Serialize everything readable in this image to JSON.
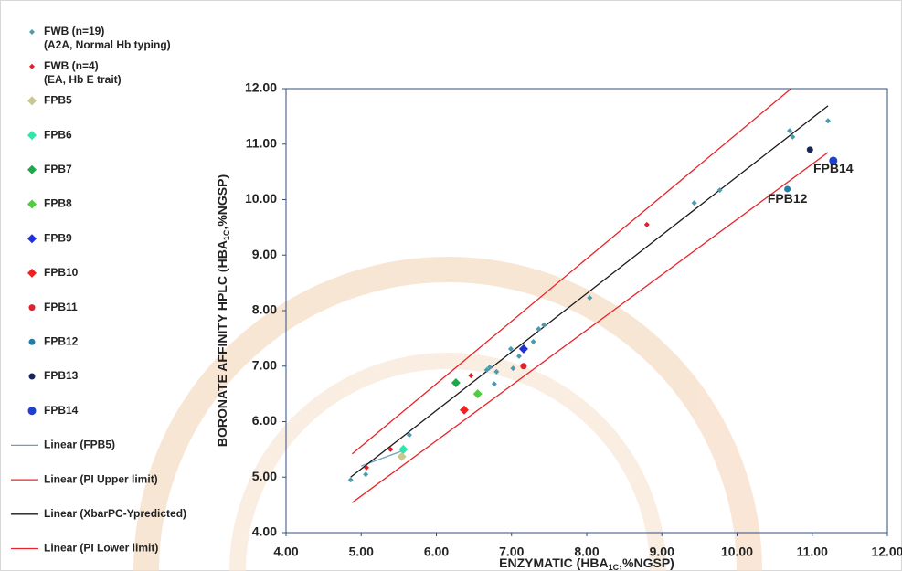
{
  "chart_data": {
    "type": "scatter",
    "x_label": {
      "pre": "ENZYMATIC (HBA",
      "sub": "1C",
      "post": ",%NGSP)"
    },
    "y_label": {
      "pre": "BORONATE AFFINITY HPLC (HBA",
      "sub": "1C",
      "post": ",%NGSP)"
    },
    "xlim": [
      4,
      12
    ],
    "ylim": [
      4,
      12
    ],
    "xticks": [
      {
        "value": 4,
        "label": "4.00"
      },
      {
        "value": 5,
        "label": "5.00"
      },
      {
        "value": 6,
        "label": "6.00"
      },
      {
        "value": 7,
        "label": "7.00"
      },
      {
        "value": 8,
        "label": "8.00"
      },
      {
        "value": 9,
        "label": "9.00"
      },
      {
        "value": 10,
        "label": "10.00"
      },
      {
        "value": 11,
        "label": "11.00"
      },
      {
        "value": 12,
        "label": "12.00"
      }
    ],
    "yticks": [
      {
        "value": 4,
        "label": "4.00"
      },
      {
        "value": 5,
        "label": "5.00"
      },
      {
        "value": 6,
        "label": "6.00"
      },
      {
        "value": 7,
        "label": "7.00"
      },
      {
        "value": 8,
        "label": "8.00"
      },
      {
        "value": 9,
        "label": "9.00"
      },
      {
        "value": 10,
        "label": "10.00"
      },
      {
        "value": 11,
        "label": "11.00"
      },
      {
        "value": 12,
        "label": "12.00"
      }
    ],
    "series": [
      {
        "name": "FWB (n=19)",
        "note": "(A2A, Normal Hb typing)",
        "color": "#4a9bb0",
        "marker": "diamond",
        "size": 3,
        "x": [
          4.86,
          5.06,
          5.64,
          6.77,
          6.99,
          7.02,
          7.1,
          7.29,
          7.36,
          7.43,
          8.04,
          9.43,
          9.77,
          10.7,
          10.74,
          11.21,
          6.67,
          6.71,
          6.8
        ],
        "values": [
          4.95,
          5.05,
          5.76,
          6.68,
          7.31,
          6.96,
          7.18,
          7.44,
          7.67,
          7.74,
          8.23,
          9.94,
          10.17,
          11.24,
          11.13,
          11.42,
          6.93,
          6.98,
          6.9
        ]
      },
      {
        "name": "FWB (n=4)",
        "note": "(EA, Hb E trait)",
        "color": "#e0202a",
        "marker": "diamond",
        "size": 3,
        "x": [
          5.07,
          5.39,
          6.46,
          8.8
        ],
        "values": [
          5.17,
          5.5,
          6.83,
          9.55
        ]
      },
      {
        "name": "FPB5",
        "color": "#c8c890",
        "marker": "diamond",
        "size": 5,
        "x": [
          5.54
        ],
        "values": [
          5.37
        ]
      },
      {
        "name": "FPB6",
        "color": "#2ee6a8",
        "marker": "diamond",
        "size": 5,
        "x": [
          5.56
        ],
        "values": [
          5.5
        ]
      },
      {
        "name": "FPB7",
        "color": "#1fa84a",
        "marker": "diamond",
        "size": 5,
        "x": [
          6.26
        ],
        "values": [
          6.7
        ]
      },
      {
        "name": "FPB8",
        "color": "#4ccf3a",
        "marker": "diamond",
        "size": 5,
        "x": [
          6.55
        ],
        "values": [
          6.5
        ]
      },
      {
        "name": "FPB9",
        "color": "#1f2fdc",
        "marker": "diamond",
        "size": 5,
        "x": [
          7.16
        ],
        "values": [
          7.31
        ]
      },
      {
        "name": "FPB10",
        "color": "#f0201e",
        "marker": "diamond",
        "size": 5,
        "x": [
          6.37
        ],
        "values": [
          6.21
        ]
      },
      {
        "name": "FPB11",
        "color": "#e0202a",
        "marker": "circle",
        "size": 3.5,
        "x": [
          7.16
        ],
        "values": [
          7.0
        ]
      },
      {
        "name": "FPB12",
        "color": "#1f7fa8",
        "marker": "circle",
        "size": 3.5,
        "x": [
          10.67
        ],
        "values": [
          10.19
        ]
      },
      {
        "name": "FPB13",
        "color": "#14285a",
        "marker": "circle",
        "size": 3.5,
        "x": [
          10.97
        ],
        "values": [
          10.9
        ]
      },
      {
        "name": "FPB14",
        "color": "#1f3fd0",
        "marker": "circle",
        "size": 4.5,
        "x": [
          11.28
        ],
        "values": [
          10.7
        ]
      }
    ],
    "lines": [
      {
        "name": "Linear (FPB5)",
        "color": "#6f9fc0",
        "x": [
          5.0,
          5.6
        ],
        "values": [
          5.2,
          5.5
        ]
      },
      {
        "name": "Linear (PI Upper limit)",
        "color": "#e8242a",
        "x": [
          4.88,
          10.72
        ],
        "values": [
          5.42,
          12.0
        ]
      },
      {
        "name": "Linear (XbarPC-Ypredicted)",
        "color": "#1a1a1a",
        "x": [
          4.86,
          11.21
        ],
        "values": [
          5.0,
          11.69
        ]
      },
      {
        "name": "Linear (PI Lower limit)",
        "color": "#e8242a",
        "x": [
          4.88,
          11.21
        ],
        "values": [
          4.54,
          10.85
        ]
      }
    ],
    "annotations": [
      {
        "text": "FPB14",
        "x": 11.28,
        "y": 10.55
      },
      {
        "text": "FPB12",
        "x": 10.67,
        "y": 10.0
      }
    ]
  }
}
